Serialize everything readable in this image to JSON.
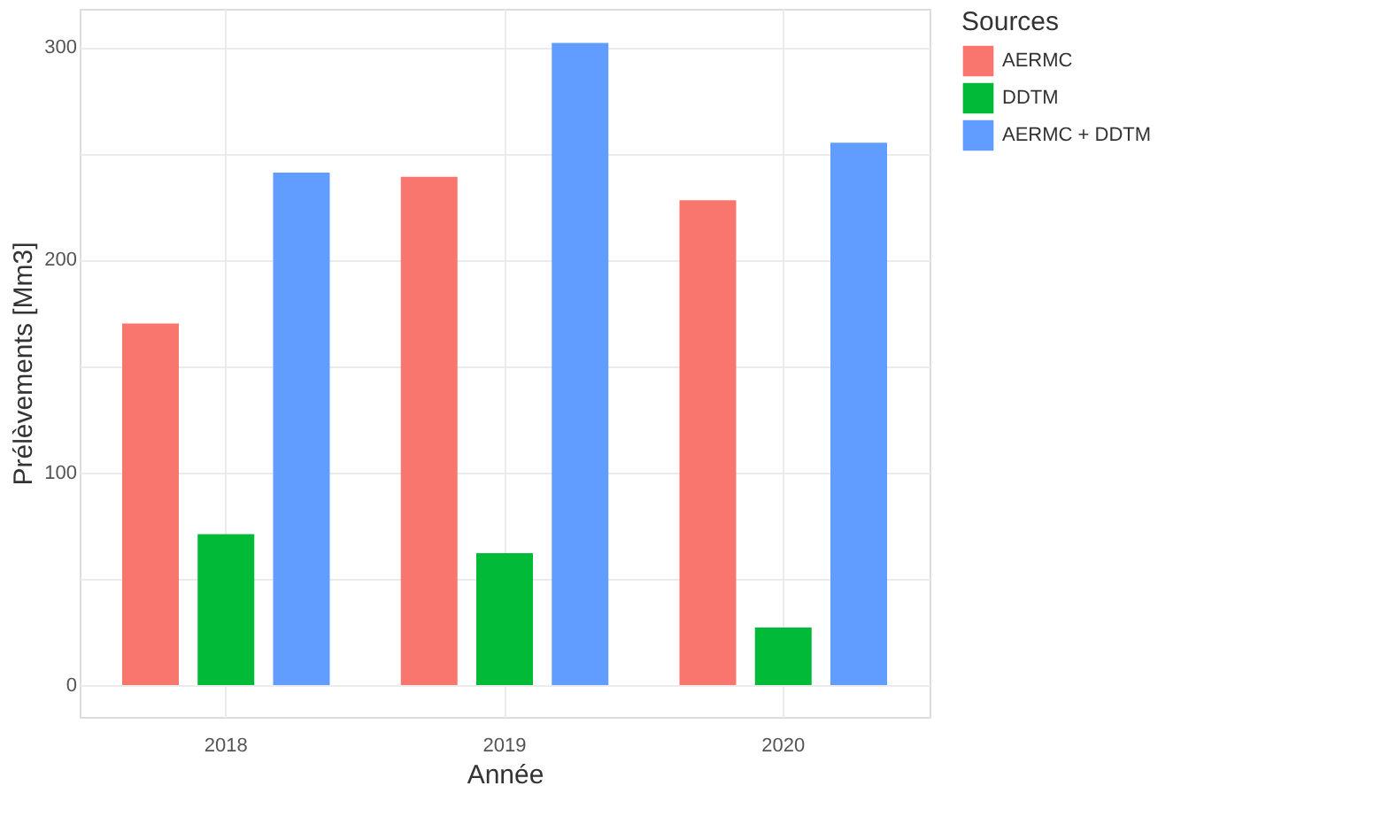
{
  "chart_data": {
    "type": "bar",
    "xlabel": "Année",
    "ylabel": "Prélèvements [Mm3]",
    "legend_title": "Sources",
    "legend": "right",
    "categories": [
      "2018",
      "2019",
      "2020"
    ],
    "series": [
      {
        "name": "AERMC",
        "color": "#f8766d",
        "values": [
          170,
          239,
          228
        ]
      },
      {
        "name": "DDTM",
        "color": "#00ba38",
        "values": [
          71,
          62,
          27
        ]
      },
      {
        "name": "AERMC + DDTM",
        "color": "#619cff",
        "values": [
          241,
          302,
          255
        ]
      }
    ],
    "ylim": [
      -15,
      318
    ],
    "yticks": [
      0,
      {
        "value": 50,
        "label": null
      },
      100,
      {
        "value": 150,
        "label": null
      },
      200,
      {
        "value": 250,
        "label": null
      },
      300
    ],
    "grid": true
  }
}
